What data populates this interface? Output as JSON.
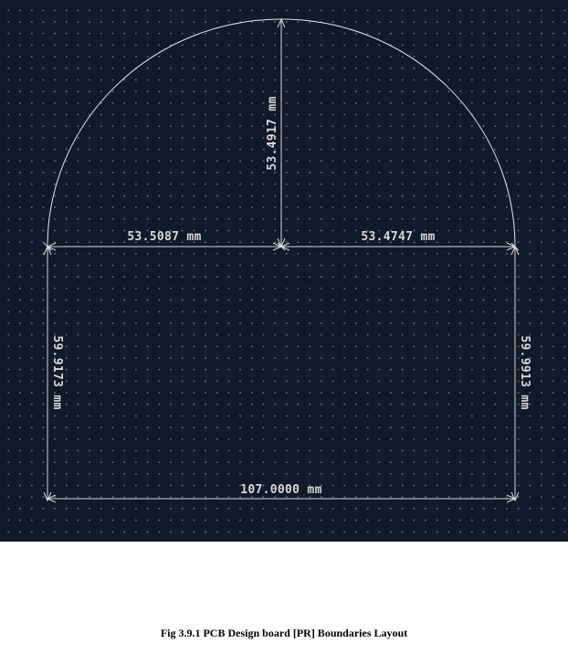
{
  "colors": {
    "canvas_background": "#0f1a2a",
    "outline": "#e6e6e6",
    "dimension": "#d8d8d8",
    "grid_dot": "#bec8d7"
  },
  "dimensions": {
    "arc_radius": "53.4917 mm",
    "left_half_width": "53.5087 mm",
    "right_half_width": "53.4747 mm",
    "left_height": "59.9173 mm",
    "right_height": "59.9913 mm",
    "total_width": "107.0000 mm"
  },
  "caption": "Fig 3.9.1 PCB Design board [PR] Boundaries Layout"
}
